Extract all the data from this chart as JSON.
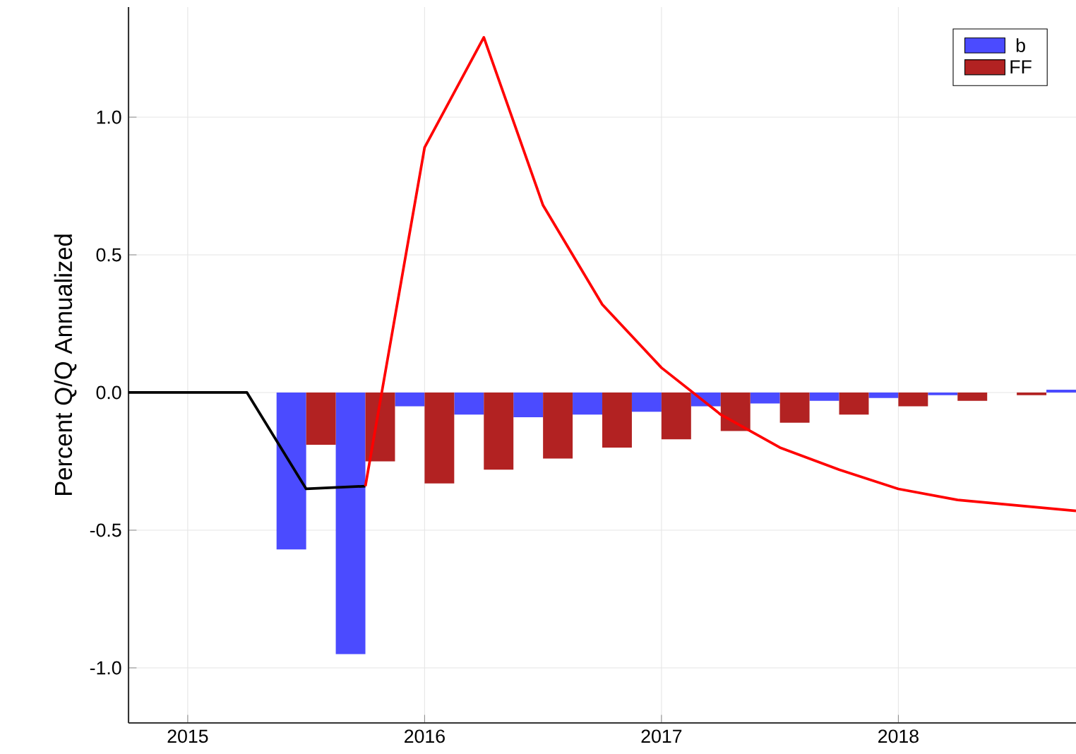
{
  "chart_data": {
    "type": "bar",
    "ylabel": "Percent Q/Q Annualized",
    "xlim": [
      2014.75,
      2018.75
    ],
    "ylim": [
      -1.2,
      1.4
    ],
    "xticks": [
      2015,
      2016,
      2017,
      2018
    ],
    "yticks": [
      {
        "value": -1,
        "label": "-1.0"
      },
      {
        "value": -0.5,
        "label": "-0.5"
      },
      {
        "value": 0,
        "label": "0.0"
      },
      {
        "value": 0.5,
        "label": "0.5"
      },
      {
        "value": 1,
        "label": "1.0"
      }
    ],
    "grid": true,
    "legend": "top right",
    "series": [
      {
        "name": "b",
        "color": "#4b4bff",
        "x": [
          2015.5,
          2015.75,
          2016,
          2016.25,
          2016.5,
          2016.75,
          2017,
          2017.25,
          2017.5,
          2017.75,
          2018,
          2018.25,
          2018.5,
          2018.75
        ],
        "values": [
          -0.57,
          -0.95,
          -0.05,
          -0.08,
          -0.09,
          -0.08,
          -0.07,
          -0.05,
          -0.04,
          -0.03,
          -0.02,
          -0.01,
          0,
          0.01
        ]
      },
      {
        "name": "FF",
        "color": "#b22222",
        "x": [
          2015.5,
          2015.75,
          2016,
          2016.25,
          2016.5,
          2016.75,
          2017,
          2017.25,
          2017.5,
          2017.75,
          2018,
          2018.25,
          2018.5
        ],
        "values": [
          -0.19,
          -0.25,
          -0.33,
          -0.28,
          -0.24,
          -0.2,
          -0.17,
          -0.14,
          -0.11,
          -0.08,
          -0.05,
          -0.03,
          -0.01
        ]
      },
      {
        "type": "line",
        "color": "#000000",
        "x": [
          2014.75,
          2015,
          2015.25,
          2015.5,
          2015.75
        ],
        "values": [
          0,
          0,
          0,
          -0.35,
          -0.34
        ]
      },
      {
        "type": "line",
        "color": "#ff0000",
        "x": [
          2015.75,
          2016,
          2016.25,
          2016.5,
          2016.75,
          2017,
          2017.25,
          2017.5,
          2017.75,
          2018,
          2018.25,
          2018.5,
          2018.75
        ],
        "values": [
          -0.34,
          0.89,
          1.29,
          0.68,
          0.32,
          0.09,
          -0.08,
          -0.2,
          -0.28,
          -0.35,
          -0.39,
          -0.41,
          -0.43
        ]
      }
    ]
  }
}
